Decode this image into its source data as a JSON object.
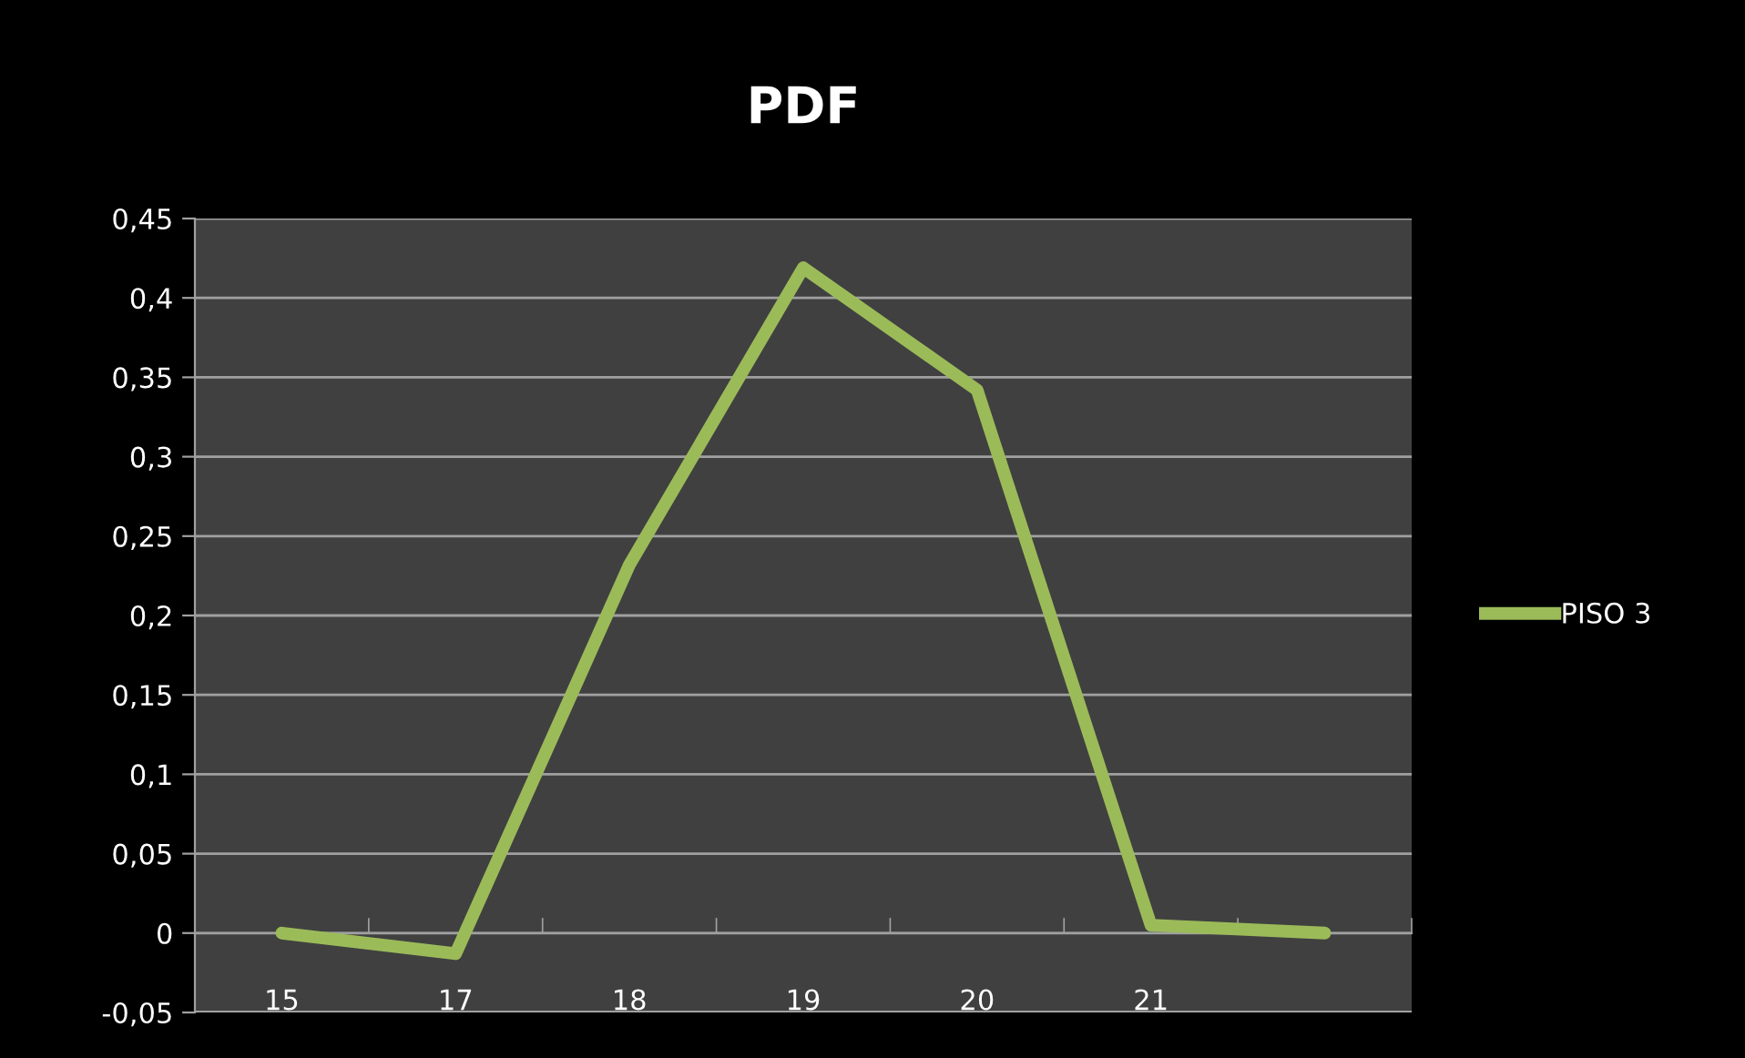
{
  "chart_data": {
    "type": "line",
    "title": "PDF",
    "categories": [
      "15",
      "17",
      "18",
      "19",
      "20",
      "21",
      null
    ],
    "series": [
      {
        "name": "PISO 3",
        "color": "#9bbb59",
        "values": [
          0,
          -0.013,
          0.232,
          0.419,
          0.342,
          0.005,
          0
        ]
      }
    ],
    "ylim": [
      -0.05,
      0.45
    ],
    "yticks": [
      {
        "value": -0.05,
        "label": "-0,05"
      },
      {
        "value": 0,
        "label": "0"
      },
      {
        "value": 0.05,
        "label": "0,05"
      },
      {
        "value": 0.1,
        "label": "0,1"
      },
      {
        "value": 0.15,
        "label": "0,15"
      },
      {
        "value": 0.2,
        "label": "0,2"
      },
      {
        "value": 0.25,
        "label": "0,25"
      },
      {
        "value": 0.3,
        "label": "0,3"
      },
      {
        "value": 0.35,
        "label": "0,35"
      },
      {
        "value": 0.4,
        "label": "0,4"
      },
      {
        "value": 0.45,
        "label": "0,45"
      }
    ],
    "grid": "y",
    "legend": "right",
    "marker": "none",
    "line_style": "solid"
  }
}
